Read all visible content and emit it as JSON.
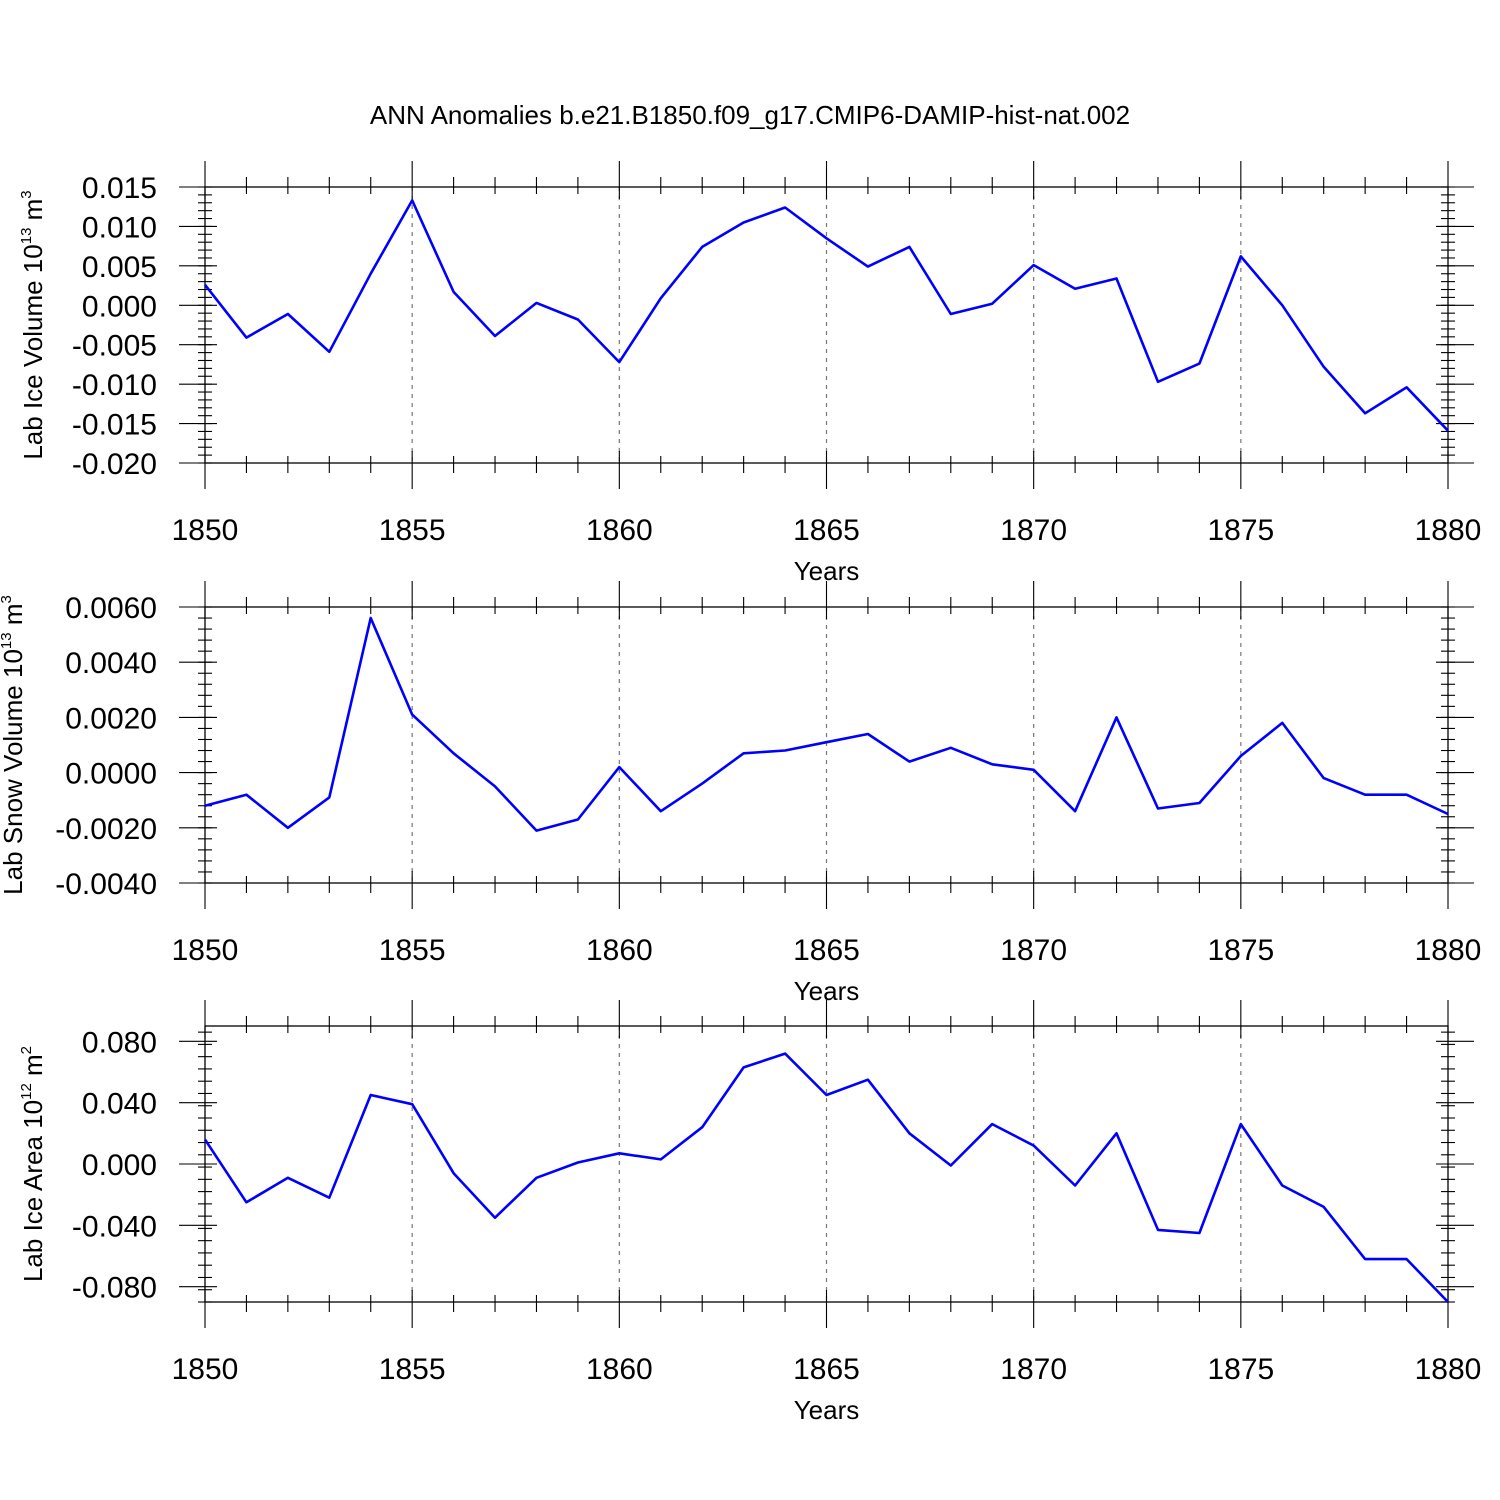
{
  "title": "ANN Anomalies b.e21.B1850.f09_g17.CMIP6-DAMIP-hist-nat.002",
  "colors": {
    "line": "#0000ff",
    "grid": "#777777",
    "axes": "#000000"
  },
  "chart_data": [
    {
      "type": "line",
      "xlabel": "Years",
      "ylabel": {
        "prefix": "Lab Ice Volume 10",
        "exponent": "13",
        "unit": " m",
        "unit_exponent": "3"
      },
      "xlim": [
        1850,
        1880
      ],
      "ylim": [
        -0.02,
        0.015
      ],
      "xticks": [
        1850,
        1855,
        1860,
        1865,
        1870,
        1875,
        1880
      ],
      "xtick_labels": [
        "1850",
        "1855",
        "1860",
        "1865",
        "1870",
        "1875",
        "1880"
      ],
      "yticks": [
        0.015,
        0.01,
        0.005,
        0.0,
        -0.005,
        -0.01,
        -0.015,
        -0.02
      ],
      "ytick_labels": [
        "0.015",
        "0.010",
        "0.005",
        "0.000",
        "-0.005",
        "-0.010",
        "-0.015",
        "-0.020"
      ],
      "grid": "vertical dashed at labeled years",
      "x": [
        1850,
        1851,
        1852,
        1853,
        1854,
        1855,
        1856,
        1857,
        1858,
        1859,
        1860,
        1861,
        1862,
        1863,
        1864,
        1865,
        1866,
        1867,
        1868,
        1869,
        1870,
        1871,
        1872,
        1873,
        1874,
        1875,
        1876,
        1877,
        1878,
        1879,
        1880
      ],
      "values": [
        0.0026,
        -0.0041,
        -0.0011,
        -0.0059,
        0.004,
        0.0133,
        0.0017,
        -0.0039,
        0.0003,
        -0.0018,
        -0.0072,
        0.0009,
        0.0074,
        0.0105,
        0.0124,
        0.0085,
        0.0049,
        0.0074,
        -0.0011,
        0.0002,
        0.0051,
        0.0021,
        0.0034,
        -0.0097,
        -0.0074,
        0.0062,
        0.0,
        -0.0078,
        -0.0137,
        -0.0104,
        -0.0159
      ]
    },
    {
      "type": "line",
      "xlabel": "Years",
      "ylabel": {
        "prefix": "Lab Snow Volume 10",
        "exponent": "13",
        "unit": " m",
        "unit_exponent": "3"
      },
      "xlim": [
        1850,
        1880
      ],
      "ylim": [
        -0.004,
        0.006
      ],
      "xticks": [
        1850,
        1855,
        1860,
        1865,
        1870,
        1875,
        1880
      ],
      "xtick_labels": [
        "1850",
        "1855",
        "1860",
        "1865",
        "1870",
        "1875",
        "1880"
      ],
      "yticks": [
        0.006,
        0.004,
        0.002,
        0.0,
        -0.002,
        -0.004
      ],
      "ytick_labels": [
        "0.0060",
        "0.0040",
        "0.0020",
        "0.0000",
        "-0.0020",
        "-0.0040"
      ],
      "grid": "vertical dashed at labeled years",
      "x": [
        1850,
        1851,
        1852,
        1853,
        1854,
        1855,
        1856,
        1857,
        1858,
        1859,
        1860,
        1861,
        1862,
        1863,
        1864,
        1865,
        1866,
        1867,
        1868,
        1869,
        1870,
        1871,
        1872,
        1873,
        1874,
        1875,
        1876,
        1877,
        1878,
        1879,
        1880
      ],
      "values": [
        -0.0012,
        -0.0008,
        -0.002,
        -0.0009,
        0.0056,
        0.0021,
        0.0007,
        -0.0005,
        -0.0021,
        -0.0017,
        0.0002,
        -0.0014,
        -0.0004,
        0.0007,
        0.0008,
        0.0011,
        0.0014,
        0.0004,
        0.0009,
        0.0003,
        0.0001,
        -0.0014,
        0.002,
        -0.0013,
        -0.0011,
        0.0006,
        0.0018,
        -0.0002,
        -0.0008,
        -0.0008,
        -0.0015
      ]
    },
    {
      "type": "line",
      "xlabel": "Years",
      "ylabel": {
        "prefix": "Lab Ice Area 10",
        "exponent": "12",
        "unit": " m",
        "unit_exponent": "2"
      },
      "xlim": [
        1850,
        1880
      ],
      "ylim": [
        -0.09,
        0.09
      ],
      "xticks": [
        1850,
        1855,
        1860,
        1865,
        1870,
        1875,
        1880
      ],
      "xtick_labels": [
        "1850",
        "1855",
        "1860",
        "1865",
        "1870",
        "1875",
        "1880"
      ],
      "yticks": [
        0.08,
        0.04,
        0.0,
        -0.04,
        -0.08
      ],
      "ytick_labels": [
        "0.080",
        "0.040",
        "0.000",
        "-0.040",
        "-0.080"
      ],
      "grid": "vertical dashed at labeled years",
      "x": [
        1850,
        1851,
        1852,
        1853,
        1854,
        1855,
        1856,
        1857,
        1858,
        1859,
        1860,
        1861,
        1862,
        1863,
        1864,
        1865,
        1866,
        1867,
        1868,
        1869,
        1870,
        1871,
        1872,
        1873,
        1874,
        1875,
        1876,
        1877,
        1878,
        1879,
        1880
      ],
      "values": [
        0.016,
        -0.025,
        -0.009,
        -0.022,
        0.045,
        0.039,
        -0.006,
        -0.035,
        -0.009,
        0.001,
        0.007,
        0.003,
        0.024,
        0.063,
        0.072,
        0.045,
        0.055,
        0.02,
        -0.001,
        0.026,
        0.012,
        -0.014,
        0.02,
        -0.043,
        -0.045,
        0.026,
        -0.014,
        -0.028,
        -0.062,
        -0.062,
        -0.09
      ]
    }
  ]
}
